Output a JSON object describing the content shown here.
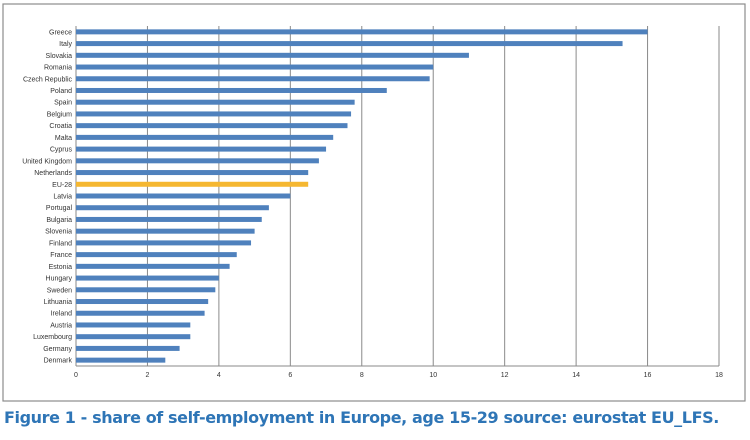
{
  "chart_data": {
    "type": "bar",
    "orientation": "horizontal",
    "title": "",
    "xlabel": "",
    "ylabel": "",
    "xlim": [
      0,
      18
    ],
    "xticks": [
      0,
      2,
      4,
      6,
      8,
      10,
      12,
      14,
      16,
      18
    ],
    "grid": "vertical",
    "legend": "none",
    "colors": {
      "default": "#4f81bd",
      "highlight": "#f5b731"
    },
    "highlight_category": "EU-28",
    "categories": [
      "Greece",
      "Italy",
      "Slovakia",
      "Romania",
      "Czech Republic",
      "Poland",
      "Spain",
      "Belgium",
      "Croatia",
      "Malta",
      "Cyprus",
      "United Kingdom",
      "Netherlands",
      "EU-28",
      "Latvia",
      "Portugal",
      "Bulgaria",
      "Slovenia",
      "Finland",
      "France",
      "Estonia",
      "Hungary",
      "Sweden",
      "Lithuania",
      "Ireland",
      "Austria",
      "Luxembourg",
      "Germany",
      "Denmark"
    ],
    "values": [
      16.0,
      15.3,
      11.0,
      10.0,
      9.9,
      8.7,
      7.8,
      7.7,
      7.6,
      7.2,
      7.0,
      6.8,
      6.5,
      6.5,
      6.0,
      5.4,
      5.2,
      5.0,
      4.9,
      4.5,
      4.3,
      4.0,
      3.9,
      3.7,
      3.6,
      3.2,
      3.2,
      2.9,
      2.5
    ]
  },
  "caption": "Figure 1 - share of self-employment in Europe, age 15-29 source: eurostat EU_LFS."
}
